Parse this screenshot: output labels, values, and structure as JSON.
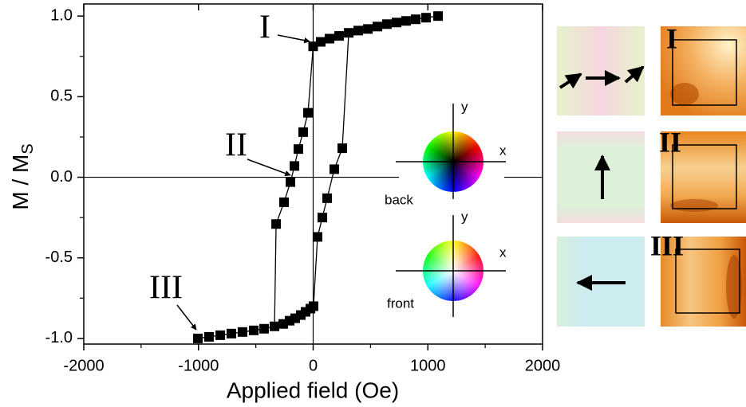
{
  "chart_data": {
    "type": "line",
    "xlabel": "Applied field (Oe)",
    "ylabel": "M / M",
    "ylabel_sub": "S",
    "xlim": [
      -2000,
      2000
    ],
    "ylim": [
      -1.035,
      1.075
    ],
    "xticks": [
      -2000,
      -1000,
      0,
      1000,
      2000
    ],
    "xminor": [
      -1500,
      -500,
      500,
      1500
    ],
    "yticks": [
      {
        "value": -1,
        "label": "-1.0"
      },
      -0.5,
      {
        "value": 0,
        "label": "0.0"
      },
      0.5,
      {
        "value": 1,
        "label": "1.0"
      }
    ],
    "yminor": [
      -0.75,
      -0.25,
      0.25,
      0.75
    ],
    "series": [
      {
        "color": "#000000",
        "x": [
          1089,
          984,
          894,
          810,
          727,
          643,
          560,
          477,
          393,
          310,
          226,
          143,
          66,
          0,
          -45,
          -87,
          -129,
          -163,
          -198,
          -254,
          -323
        ],
        "values": [
          1.0,
          0.99,
          0.98,
          0.97,
          0.96,
          0.95,
          0.935,
          0.92,
          0.91,
          0.896,
          0.877,
          0.86,
          0.84,
          0.812,
          0.4,
          0.28,
          0.175,
          0.07,
          -0.03,
          -0.155,
          -0.29
        ]
      },
      {
        "color": "#000000",
        "x": [
          -1005,
          -908,
          -810,
          -713,
          -616,
          -518,
          -428,
          -337,
          -261,
          -205,
          -157,
          -108,
          -66,
          -24,
          3,
          38,
          80,
          122,
          184,
          254
        ],
        "values": [
          -1.0,
          -0.99,
          -0.98,
          -0.97,
          -0.96,
          -0.95,
          -0.94,
          -0.925,
          -0.91,
          -0.89,
          -0.875,
          -0.855,
          -0.835,
          -0.815,
          -0.8,
          -0.37,
          -0.25,
          -0.13,
          0.05,
          0.18
        ]
      }
    ],
    "annotations": [
      "I",
      "II",
      "III"
    ],
    "color_wheels": [
      {
        "label": "back",
        "x_axis": "x",
        "y_axis": "y"
      },
      {
        "label": "front",
        "x_axis": "x",
        "y_axis": "y"
      }
    ]
  },
  "panels": {
    "labels": [
      "I",
      "II",
      "III"
    ]
  }
}
